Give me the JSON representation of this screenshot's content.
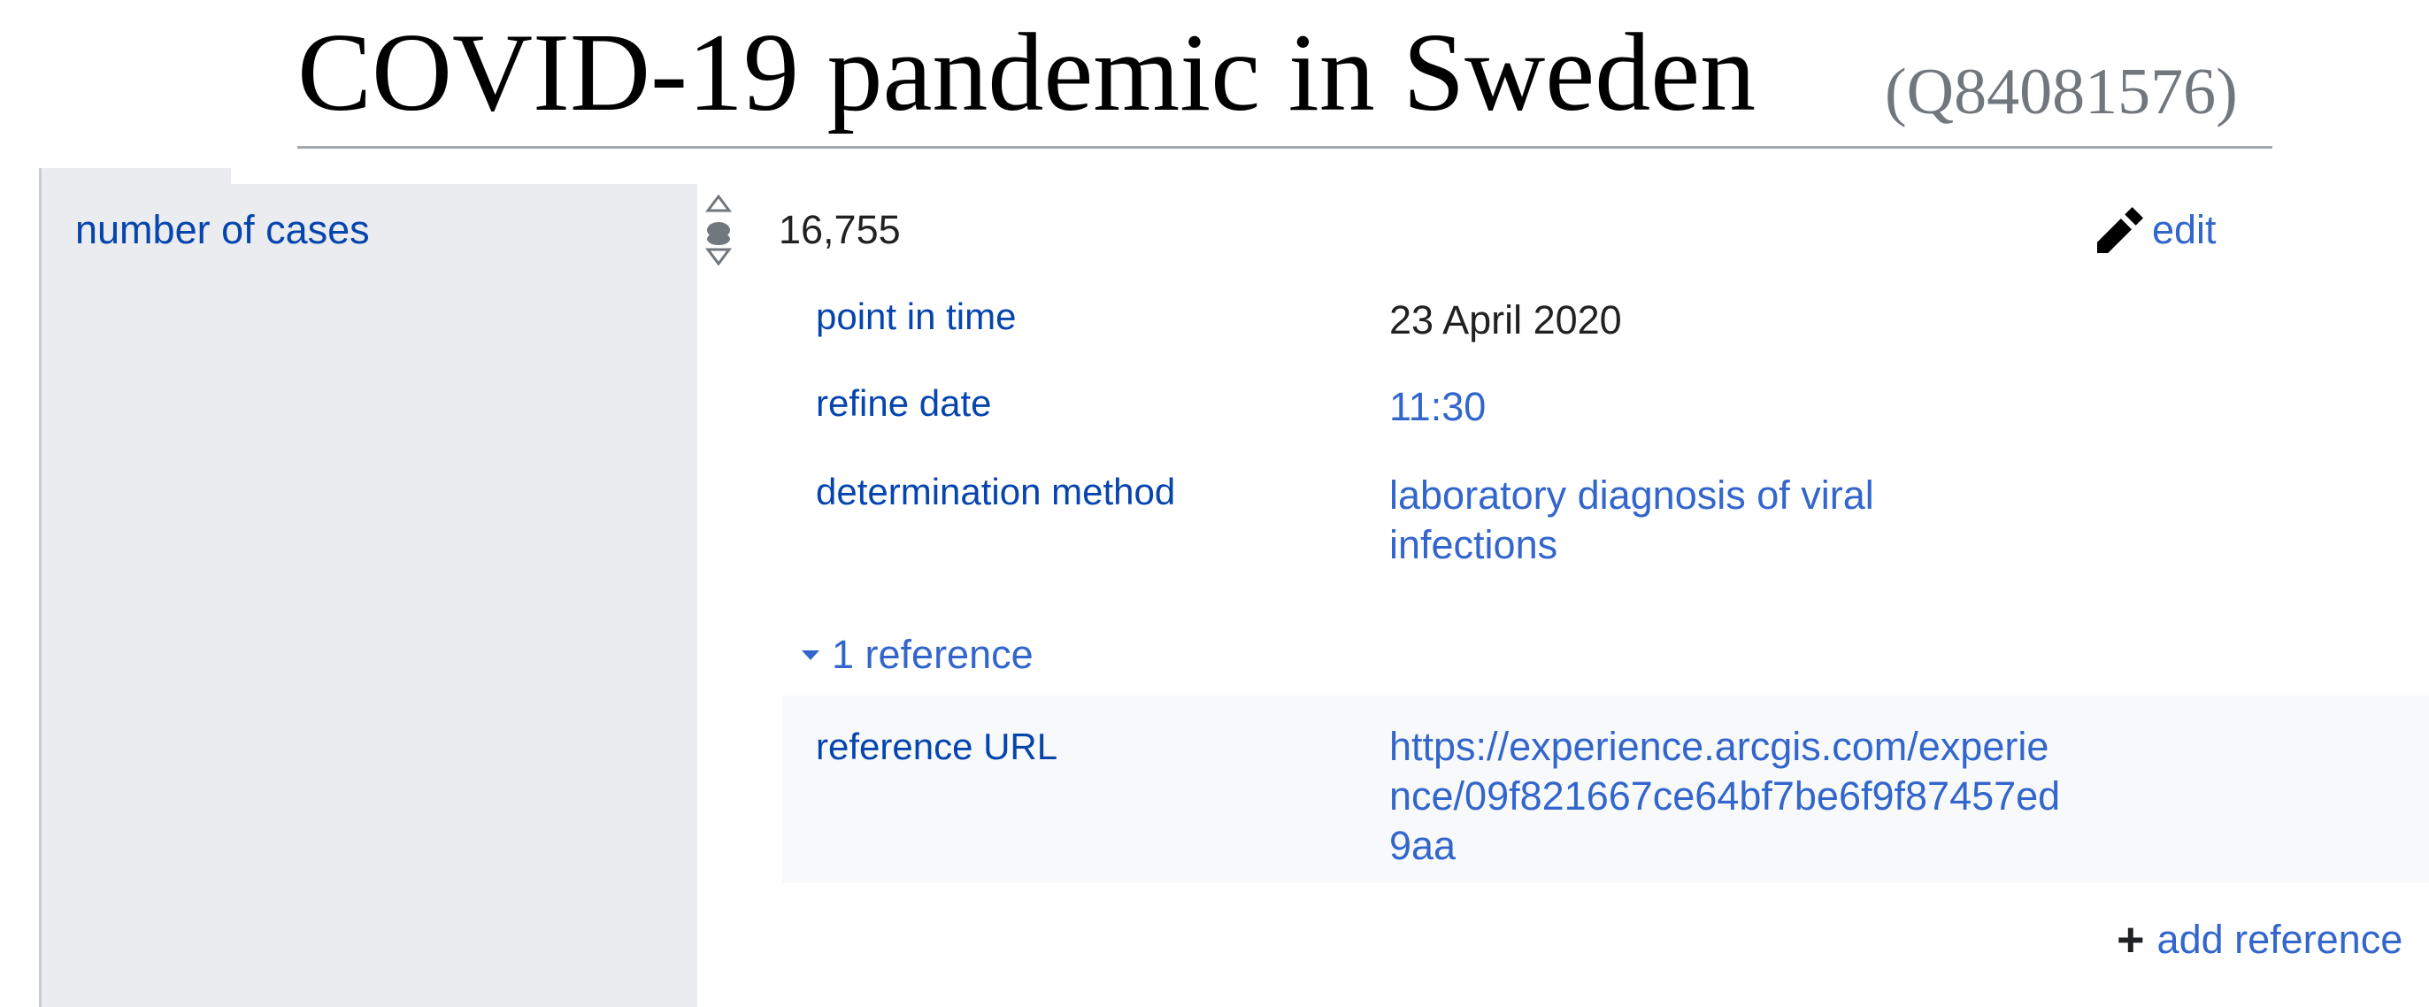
{
  "header": {
    "title": "COVID-19 pandemic in Sweden",
    "qid": "(Q84081576)"
  },
  "statement": {
    "property": "number of cases",
    "value": "16,755",
    "edit_label": "edit",
    "qualifiers": [
      {
        "property": "point in time",
        "value": "23 April 2020",
        "is_link": false
      },
      {
        "property": "refine date",
        "value": "11:30",
        "is_link": true
      },
      {
        "property": "determination method",
        "value": "laboratory diagnosis of viral infections",
        "is_link": true
      }
    ],
    "references": {
      "toggle_label": "1 reference",
      "expanded": true,
      "items": [
        {
          "property": "reference URL",
          "value": "https://experience.arcgis.com/experience/09f821667ce64bf7be6f9f87457ed9aa"
        }
      ]
    },
    "add_reference_label": "add reference"
  },
  "icons": {
    "rank": "rank-selector-icon",
    "edit": "pencil-icon",
    "toggle": "triangle-down-icon",
    "add": "plus-icon"
  },
  "colors": {
    "link": "#3366cc",
    "property_link": "#0645ad",
    "property_bg": "#eaecf0",
    "reference_bg": "#f8f9fa",
    "qid": "#72777d"
  }
}
